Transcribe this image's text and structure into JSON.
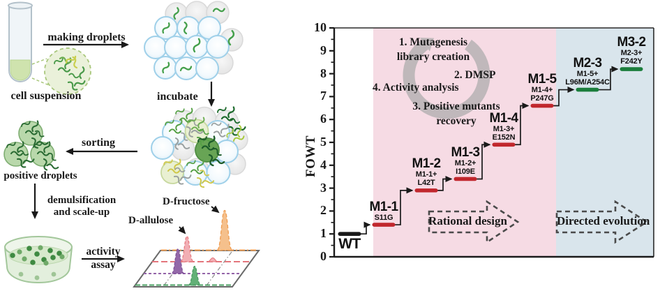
{
  "left_diagram": {
    "labels": {
      "making_droplets": "making droplets",
      "cell_suspension": "cell suspension",
      "incubate": "incubate",
      "sorting": "sorting",
      "positive_droplets": "positive droplets",
      "demulsification_scaleup": "demulsification and scale-up",
      "activity": "activity",
      "assay": "assay",
      "d_allulose": "D-allulose",
      "d_fructose": "D-fructose"
    }
  },
  "chart_data": {
    "type": "scatter-step",
    "title": "",
    "ylabel": "FOWT",
    "xlabel": "",
    "ylim": [
      0,
      10
    ],
    "ytick_interval": 1,
    "minor_tick_interval": 0.5,
    "grid": false,
    "categories": [
      "WT",
      "M1-1",
      "M1-2",
      "M1-3",
      "M1-4",
      "M1-5",
      "M2-3",
      "M3-2"
    ],
    "values": [
      1.0,
      1.4,
      2.9,
      3.4,
      4.9,
      6.6,
      7.3,
      8.2
    ],
    "points": [
      {
        "name": "WT",
        "derivation": "",
        "value": 1.0,
        "marker_color": "#1a1a1a",
        "label_position": "below"
      },
      {
        "name": "M1-1",
        "derivation": "S11G",
        "value": 1.4,
        "marker_color": "#c1272d",
        "label_position": "above"
      },
      {
        "name": "M1-2",
        "derivation": "M1-1+ L42T",
        "value": 2.9,
        "marker_color": "#c1272d",
        "label_position": "above"
      },
      {
        "name": "M1-3",
        "derivation": "M1-2+ I109E",
        "value": 3.4,
        "marker_color": "#c1272d",
        "label_position": "above"
      },
      {
        "name": "M1-4",
        "derivation": "M1-3+ E152N",
        "value": 4.9,
        "marker_color": "#c1272d",
        "label_position": "above"
      },
      {
        "name": "M1-5",
        "derivation": "M1-4+ P247G",
        "value": 6.6,
        "marker_color": "#c1272d",
        "label_position": "above"
      },
      {
        "name": "M2-3",
        "derivation": "M1-5+ L96M/A254C",
        "value": 7.3,
        "marker_color": "#1b7e3c",
        "label_position": "above"
      },
      {
        "name": "M3-2",
        "derivation": "M2-3+ F242Y",
        "value": 8.2,
        "marker_color": "#1b7e3c",
        "label_position": "above"
      }
    ],
    "regions": [
      {
        "label": "Rational design",
        "color": "#f6dbe4"
      },
      {
        "label": "Directed evolution",
        "color": "#d9e5ec"
      }
    ],
    "cycle_steps": [
      "1. Mutagenesis library creation",
      "2. DMSP",
      "3. Positive mutants recovery",
      "4. Activity analysis"
    ]
  }
}
